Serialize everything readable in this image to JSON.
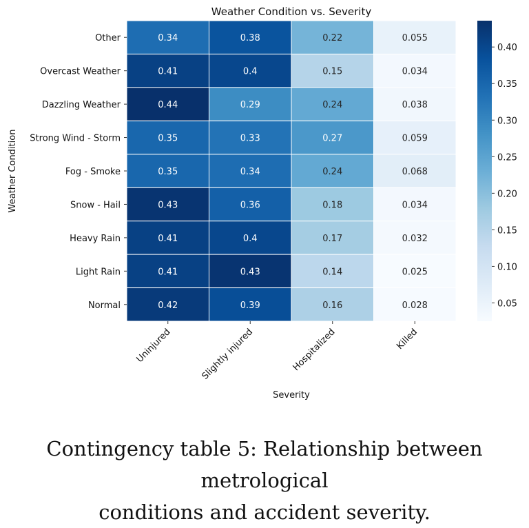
{
  "chart_data": {
    "type": "heatmap",
    "title": "Weather Condition vs. Severity",
    "xlabel": "Severity",
    "ylabel": "Weather Condition",
    "x_categories": [
      "Uninjured",
      "Slightly injured",
      "Hospitalized",
      "Killed"
    ],
    "y_categories": [
      "Other",
      "Overcast Weather",
      "Dazzling Weather",
      "Strong Wind - Storm",
      "Fog - Smoke",
      "Snow - Hail",
      "Heavy Rain",
      "Light Rain",
      "Normal"
    ],
    "values": [
      [
        "0.34",
        "0.38",
        "0.22",
        "0.055"
      ],
      [
        "0.41",
        "0.4",
        "0.15",
        "0.034"
      ],
      [
        "0.44",
        "0.29",
        "0.24",
        "0.038"
      ],
      [
        "0.35",
        "0.33",
        "0.27",
        "0.059"
      ],
      [
        "0.35",
        "0.34",
        "0.24",
        "0.068"
      ],
      [
        "0.43",
        "0.36",
        "0.18",
        "0.034"
      ],
      [
        "0.41",
        "0.4",
        "0.17",
        "0.032"
      ],
      [
        "0.41",
        "0.43",
        "0.14",
        "0.025"
      ],
      [
        "0.42",
        "0.39",
        "0.16",
        "0.028"
      ]
    ],
    "colormap": "Blues",
    "colorbar_range": [
      0.025,
      0.436
    ],
    "colorbar_ticks": [
      "0.05",
      "0.10",
      "0.15",
      "0.20",
      "0.25",
      "0.30",
      "0.35",
      "0.40"
    ]
  },
  "caption": {
    "line1": "Contingency table 5: Relationship between metrological",
    "line2": "conditions and accident severity."
  }
}
